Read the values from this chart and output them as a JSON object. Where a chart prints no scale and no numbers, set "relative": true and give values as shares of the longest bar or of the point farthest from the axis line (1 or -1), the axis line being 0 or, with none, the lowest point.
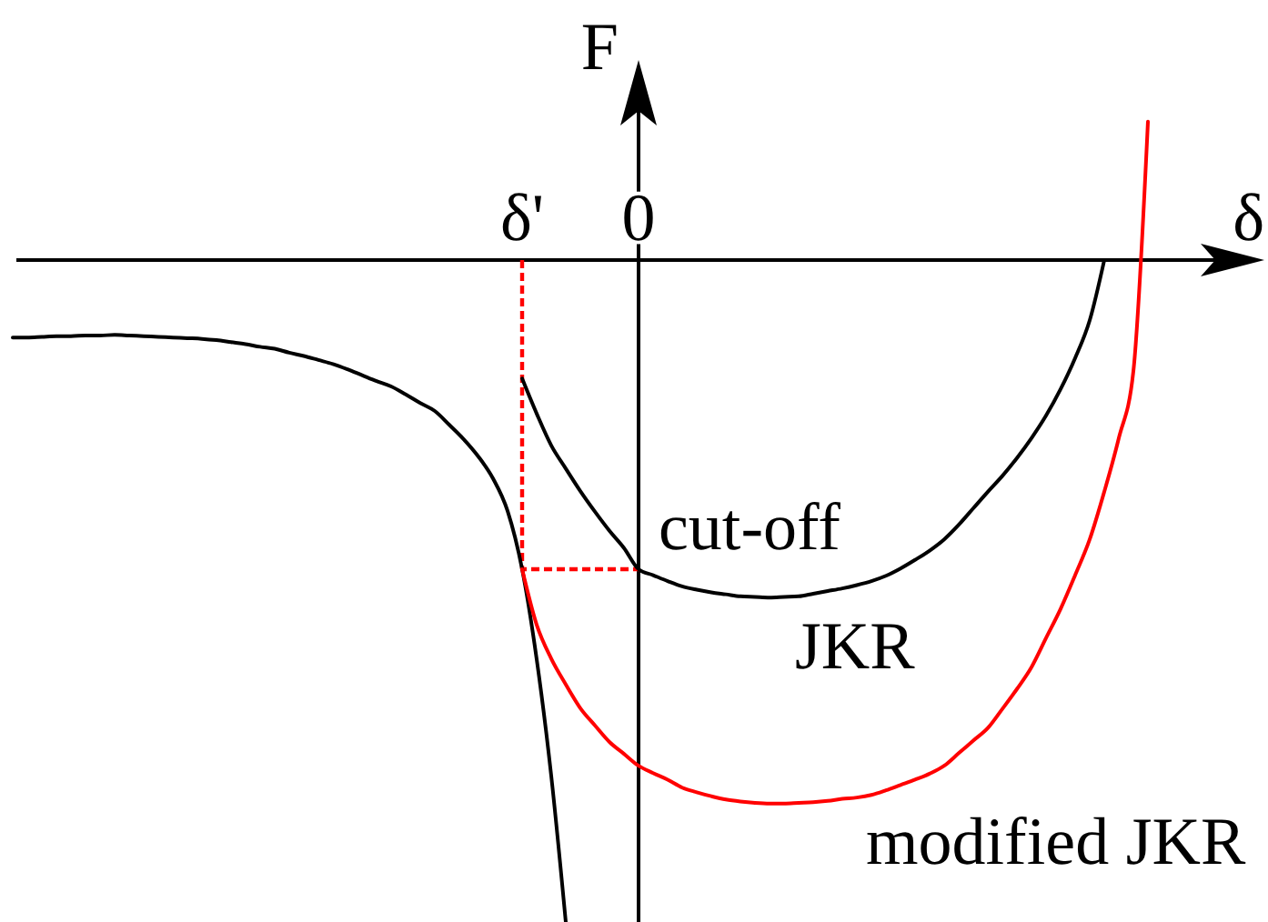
{
  "chart_data": {
    "type": "line",
    "xlabel": "δ",
    "ylabel": "F",
    "relative": true,
    "categories": [
      null,
      null,
      null,
      null,
      null,
      null,
      null,
      null,
      null,
      null,
      null,
      null,
      null,
      null,
      null,
      null,
      null,
      null,
      null,
      null,
      null,
      null,
      null,
      null,
      null,
      null,
      null,
      null,
      null,
      null,
      null,
      null,
      null,
      null,
      null,
      "δ'",
      null,
      null,
      null,
      null,
      null,
      null,
      null,
      "0",
      null,
      null,
      null,
      null,
      null,
      null,
      null,
      null,
      null,
      null,
      null,
      null,
      null,
      null,
      null,
      null,
      null,
      null,
      null,
      null,
      null,
      null,
      null,
      null,
      null,
      null,
      null,
      null,
      null,
      null,
      null,
      null,
      null,
      null,
      null,
      null,
      null,
      null,
      null,
      null,
      null,
      null,
      null
    ],
    "series": [
      {
        "color": "#ff0000",
        "line_style": "dashed",
        "x": [
          "δ'",
          "δ'",
          "0"
        ],
        "values": [
          0,
          -0.467,
          -0.467
        ]
      },
      {
        "color": "#000000",
        "values": [
          -0.117,
          -0.117,
          -0.116,
          -0.115,
          -0.115,
          -0.114,
          -0.114,
          -0.113,
          -0.114,
          -0.115,
          -0.116,
          -0.117,
          -0.118,
          -0.119,
          -0.121,
          -0.124,
          -0.127,
          -0.131,
          -0.134,
          -0.14,
          -0.145,
          -0.151,
          -0.157,
          -0.165,
          -0.174,
          -0.183,
          -0.191,
          -0.203,
          -0.216,
          -0.228,
          -0.249,
          -0.271,
          -0.297,
          -0.33,
          -0.379,
          -0.467,
          -0.603,
          -0.779,
          -1,
          null,
          null,
          null,
          null,
          null,
          null,
          null,
          null,
          null,
          null,
          null,
          null,
          null,
          null,
          null,
          null,
          null,
          null,
          null,
          null,
          null,
          null,
          null,
          null,
          null,
          null,
          null,
          null,
          null,
          null,
          null,
          null,
          null,
          null,
          null,
          null,
          null,
          null,
          null,
          null,
          null,
          null,
          null,
          null,
          null,
          null,
          null,
          null
        ]
      },
      {
        "name": "JKR",
        "color": "#000000",
        "values": [
          null,
          null,
          null,
          null,
          null,
          null,
          null,
          null,
          null,
          null,
          null,
          null,
          null,
          null,
          null,
          null,
          null,
          null,
          null,
          null,
          null,
          null,
          null,
          null,
          null,
          null,
          null,
          null,
          null,
          null,
          null,
          null,
          null,
          null,
          null,
          -0.179,
          -0.232,
          -0.28,
          -0.315,
          -0.349,
          -0.38,
          -0.409,
          -0.435,
          -0.467,
          -0.476,
          -0.485,
          -0.493,
          -0.498,
          -0.502,
          -0.505,
          -0.508,
          -0.509,
          -0.51,
          -0.509,
          -0.508,
          -0.504,
          -0.5,
          -0.496,
          -0.491,
          -0.485,
          -0.477,
          -0.466,
          -0.453,
          -0.439,
          -0.422,
          -0.4,
          -0.375,
          -0.35,
          -0.326,
          -0.299,
          -0.269,
          -0.235,
          -0.195,
          -0.148,
          -0.091,
          0,
          null,
          null,
          null,
          null,
          null,
          null,
          null,
          null,
          null,
          null,
          null
        ]
      },
      {
        "name": "modified JKR",
        "color": "#ff0000",
        "values": [
          null,
          null,
          null,
          null,
          null,
          null,
          null,
          null,
          null,
          null,
          null,
          null,
          null,
          null,
          null,
          null,
          null,
          null,
          null,
          null,
          null,
          null,
          null,
          null,
          null,
          null,
          null,
          null,
          null,
          null,
          null,
          null,
          null,
          null,
          null,
          -0.467,
          -0.551,
          -0.602,
          -0.641,
          -0.677,
          -0.703,
          -0.728,
          -0.746,
          -0.764,
          -0.775,
          -0.785,
          -0.797,
          -0.804,
          -0.81,
          -0.815,
          -0.818,
          -0.82,
          -0.821,
          -0.821,
          -0.82,
          -0.819,
          -0.817,
          -0.814,
          -0.812,
          -0.808,
          -0.801,
          -0.793,
          -0.785,
          -0.776,
          -0.764,
          -0.745,
          -0.726,
          -0.707,
          -0.678,
          -0.648,
          -0.615,
          -0.571,
          -0.527,
          -0.476,
          -0.422,
          -0.35,
          -0.269,
          -0.168,
          0.209,
          null,
          null,
          null,
          null,
          null,
          null,
          null,
          null
        ]
      }
    ],
    "annotations": [
      {
        "text": "cut-off",
        "x": "0",
        "y": -0.467
      }
    ]
  }
}
